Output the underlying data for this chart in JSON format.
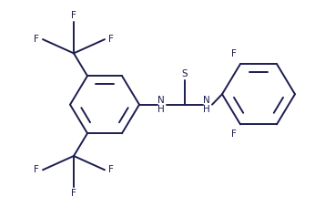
{
  "bg_color": "#ffffff",
  "line_color": "#1c1c50",
  "fs": 7.5,
  "lw": 1.4,
  "figsize": [
    3.57,
    2.16
  ],
  "dpi": 100,
  "note": "All coords in pixel space W=357 H=216, y flipped"
}
